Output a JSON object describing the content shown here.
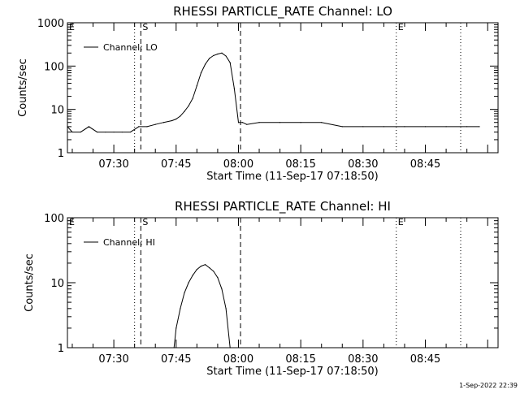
{
  "footer_stamp": "1-Sep-2022 22:39",
  "chart_data": [
    {
      "type": "line",
      "title": "RHESSI PARTICLE_RATE Channel: LO",
      "xlabel": "Start Time (11-Sep-17 07:18:50)",
      "ylabel": "Counts/sec",
      "yscale": "log",
      "ylim": [
        1,
        1000
      ],
      "yticks": [
        "1",
        "10",
        "100",
        "1000"
      ],
      "xticks": [
        "07:30",
        "07:45",
        "08:00",
        "08:15",
        "08:30",
        "08:45"
      ],
      "xlim": [
        "07:18:50",
        "09:02:30"
      ],
      "legend": "top-left",
      "series": [
        {
          "name": "Channel: LO",
          "x": [
            "07:18:50",
            "07:20:00",
            "07:22:00",
            "07:24:00",
            "07:26:00",
            "07:28:00",
            "07:30:00",
            "07:32:00",
            "07:34:00",
            "07:36:00",
            "07:38:00",
            "07:40:00",
            "07:42:00",
            "07:44:00",
            "07:45:00",
            "07:46:00",
            "07:47:00",
            "07:48:00",
            "07:49:00",
            "07:50:00",
            "07:51:00",
            "07:52:00",
            "07:53:00",
            "07:54:00",
            "07:55:00",
            "07:56:00",
            "07:57:00",
            "07:58:00",
            "07:59:00",
            "08:00:00",
            "08:01:00",
            "08:02:00",
            "08:05:00",
            "08:10:00",
            "08:15:00",
            "08:20:00",
            "08:25:00",
            "08:30:00",
            "08:35:00",
            "08:40:00",
            "08:45:00",
            "08:50:00",
            "08:55:00",
            "08:58:00"
          ],
          "y": [
            4,
            3,
            3,
            4,
            3,
            3,
            3,
            3,
            3,
            4,
            4,
            4.5,
            5,
            5.5,
            6,
            7,
            9,
            12,
            18,
            35,
            70,
            110,
            150,
            175,
            190,
            200,
            170,
            120,
            30,
            5,
            5,
            4.5,
            5,
            5,
            5,
            5,
            4,
            4,
            4,
            4,
            4,
            4,
            4,
            4
          ]
        }
      ],
      "annotations": [
        {
          "label": "E",
          "x": "07:18:50",
          "style": "dotted"
        },
        {
          "label": "",
          "x": "07:35:00",
          "style": "dotted"
        },
        {
          "label": "S",
          "x": "07:36:30",
          "style": "dashed"
        },
        {
          "label": "",
          "x": "08:00:30",
          "style": "dashed"
        },
        {
          "label": "E",
          "x": "08:38:00",
          "style": "dotted"
        },
        {
          "label": "",
          "x": "08:53:30",
          "style": "dotted"
        }
      ]
    },
    {
      "type": "line",
      "title": "RHESSI PARTICLE_RATE Channel: HI",
      "xlabel": "Start Time (11-Sep-17 07:18:50)",
      "ylabel": "Counts/sec",
      "yscale": "log",
      "ylim": [
        1,
        100
      ],
      "yticks": [
        "1",
        "10",
        "100"
      ],
      "xticks": [
        "07:30",
        "07:45",
        "08:00",
        "08:15",
        "08:30",
        "08:45"
      ],
      "xlim": [
        "07:18:50",
        "09:02:30"
      ],
      "legend": "top-left",
      "series": [
        {
          "name": "Channel: HI",
          "x": [
            "07:44:30",
            "07:45:00",
            "07:46:00",
            "07:47:00",
            "07:48:00",
            "07:49:00",
            "07:50:00",
            "07:51:00",
            "07:52:00",
            "07:53:00",
            "07:54:00",
            "07:55:00",
            "07:56:00",
            "07:57:00",
            "07:58:00"
          ],
          "y": [
            1,
            2,
            4,
            7,
            10,
            13,
            16,
            18,
            19,
            17,
            15,
            12,
            8,
            4,
            1
          ]
        }
      ],
      "annotations": [
        {
          "label": "E",
          "x": "07:18:50",
          "style": "dotted"
        },
        {
          "label": "",
          "x": "07:35:00",
          "style": "dotted"
        },
        {
          "label": "S",
          "x": "07:36:30",
          "style": "dashed"
        },
        {
          "label": "",
          "x": "08:00:30",
          "style": "dashed"
        },
        {
          "label": "E",
          "x": "08:38:00",
          "style": "dotted"
        },
        {
          "label": "",
          "x": "08:53:30",
          "style": "dotted"
        }
      ]
    }
  ]
}
